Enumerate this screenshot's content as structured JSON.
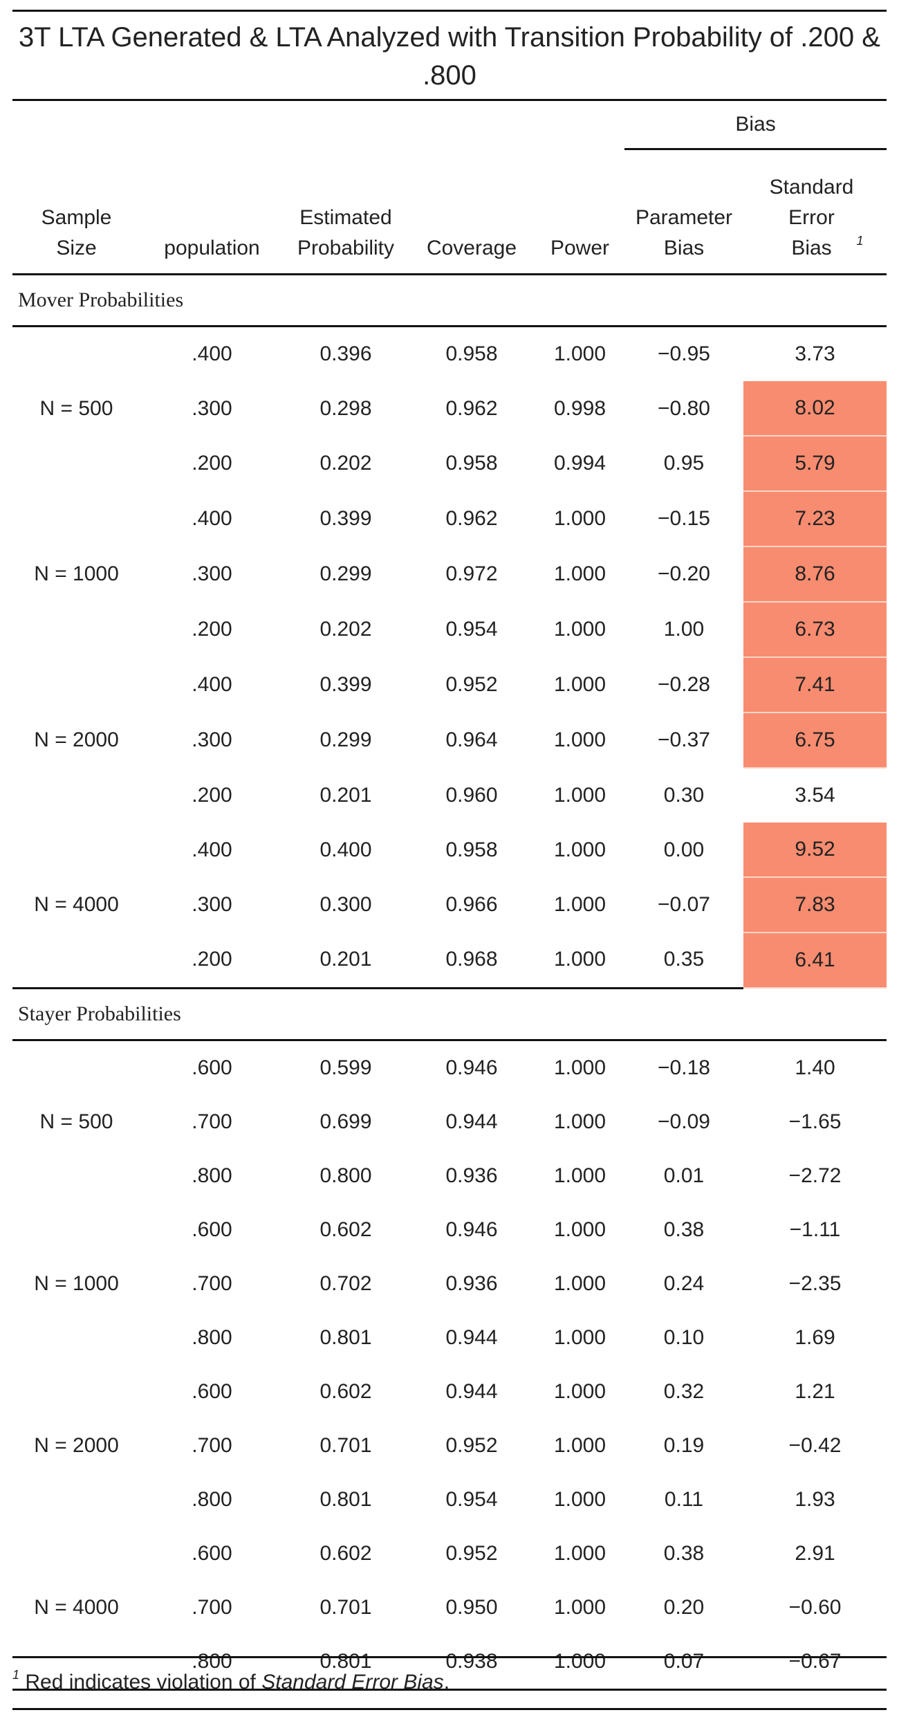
{
  "title": "3T LTA Generated & LTA Analyzed with Transition Probability of .200 & .800",
  "header": {
    "group_label": "Bias",
    "sample_size": "Sample Size",
    "population": "population",
    "estimated_probability": "Estimated Probability",
    "coverage": "Coverage",
    "power": "Power",
    "parameter_bias": "Parameter Bias",
    "se_bias": "Standard Error Bias",
    "se_bias_marker": "1"
  },
  "highlight_color": "#f88c70",
  "sections": [
    {
      "label": "Mover Probabilities",
      "rows": [
        {
          "n": "",
          "pop": ".400",
          "est": "0.396",
          "cov": "0.958",
          "power": "1.000",
          "pbias": "−0.95",
          "sebias": "3.73",
          "violation": false
        },
        {
          "n": "N = 500",
          "pop": ".300",
          "est": "0.298",
          "cov": "0.962",
          "power": "0.998",
          "pbias": "−0.80",
          "sebias": "8.02",
          "violation": true
        },
        {
          "n": "",
          "pop": ".200",
          "est": "0.202",
          "cov": "0.958",
          "power": "0.994",
          "pbias": "0.95",
          "sebias": "5.79",
          "violation": true
        },
        {
          "n": "",
          "pop": ".400",
          "est": "0.399",
          "cov": "0.962",
          "power": "1.000",
          "pbias": "−0.15",
          "sebias": "7.23",
          "violation": true
        },
        {
          "n": "N = 1000",
          "pop": ".300",
          "est": "0.299",
          "cov": "0.972",
          "power": "1.000",
          "pbias": "−0.20",
          "sebias": "8.76",
          "violation": true
        },
        {
          "n": "",
          "pop": ".200",
          "est": "0.202",
          "cov": "0.954",
          "power": "1.000",
          "pbias": "1.00",
          "sebias": "6.73",
          "violation": true
        },
        {
          "n": "",
          "pop": ".400",
          "est": "0.399",
          "cov": "0.952",
          "power": "1.000",
          "pbias": "−0.28",
          "sebias": "7.41",
          "violation": true
        },
        {
          "n": "N = 2000",
          "pop": ".300",
          "est": "0.299",
          "cov": "0.964",
          "power": "1.000",
          "pbias": "−0.37",
          "sebias": "6.75",
          "violation": true
        },
        {
          "n": "",
          "pop": ".200",
          "est": "0.201",
          "cov": "0.960",
          "power": "1.000",
          "pbias": "0.30",
          "sebias": "3.54",
          "violation": false
        },
        {
          "n": "",
          "pop": ".400",
          "est": "0.400",
          "cov": "0.958",
          "power": "1.000",
          "pbias": "0.00",
          "sebias": "9.52",
          "violation": true
        },
        {
          "n": "N = 4000",
          "pop": ".300",
          "est": "0.300",
          "cov": "0.966",
          "power": "1.000",
          "pbias": "−0.07",
          "sebias": "7.83",
          "violation": true
        },
        {
          "n": "",
          "pop": ".200",
          "est": "0.201",
          "cov": "0.968",
          "power": "1.000",
          "pbias": "0.35",
          "sebias": "6.41",
          "violation": true
        }
      ]
    },
    {
      "label": "Stayer Probabilities",
      "rows": [
        {
          "n": "",
          "pop": ".600",
          "est": "0.599",
          "cov": "0.946",
          "power": "1.000",
          "pbias": "−0.18",
          "sebias": "1.40",
          "violation": false
        },
        {
          "n": "N = 500",
          "pop": ".700",
          "est": "0.699",
          "cov": "0.944",
          "power": "1.000",
          "pbias": "−0.09",
          "sebias": "−1.65",
          "violation": false
        },
        {
          "n": "",
          "pop": ".800",
          "est": "0.800",
          "cov": "0.936",
          "power": "1.000",
          "pbias": "0.01",
          "sebias": "−2.72",
          "violation": false
        },
        {
          "n": "",
          "pop": ".600",
          "est": "0.602",
          "cov": "0.946",
          "power": "1.000",
          "pbias": "0.38",
          "sebias": "−1.11",
          "violation": false
        },
        {
          "n": "N = 1000",
          "pop": ".700",
          "est": "0.702",
          "cov": "0.936",
          "power": "1.000",
          "pbias": "0.24",
          "sebias": "−2.35",
          "violation": false
        },
        {
          "n": "",
          "pop": ".800",
          "est": "0.801",
          "cov": "0.944",
          "power": "1.000",
          "pbias": "0.10",
          "sebias": "1.69",
          "violation": false
        },
        {
          "n": "",
          "pop": ".600",
          "est": "0.602",
          "cov": "0.944",
          "power": "1.000",
          "pbias": "0.32",
          "sebias": "1.21",
          "violation": false
        },
        {
          "n": "N = 2000",
          "pop": ".700",
          "est": "0.701",
          "cov": "0.952",
          "power": "1.000",
          "pbias": "0.19",
          "sebias": "−0.42",
          "violation": false
        },
        {
          "n": "",
          "pop": ".800",
          "est": "0.801",
          "cov": "0.954",
          "power": "1.000",
          "pbias": "0.11",
          "sebias": "1.93",
          "violation": false
        },
        {
          "n": "",
          "pop": ".600",
          "est": "0.602",
          "cov": "0.952",
          "power": "1.000",
          "pbias": "0.38",
          "sebias": "2.91",
          "violation": false
        },
        {
          "n": "N = 4000",
          "pop": ".700",
          "est": "0.701",
          "cov": "0.950",
          "power": "1.000",
          "pbias": "0.20",
          "sebias": "−0.60",
          "violation": false
        },
        {
          "n": "",
          "pop": ".800",
          "est": "0.801",
          "cov": "0.938",
          "power": "1.000",
          "pbias": "0.07",
          "sebias": "−0.67",
          "violation": false
        }
      ]
    }
  ],
  "footnote": {
    "marker": "1",
    "text_before": "Red indicates violation of ",
    "text_italic": "Standard Error Bias",
    "text_after": "."
  }
}
